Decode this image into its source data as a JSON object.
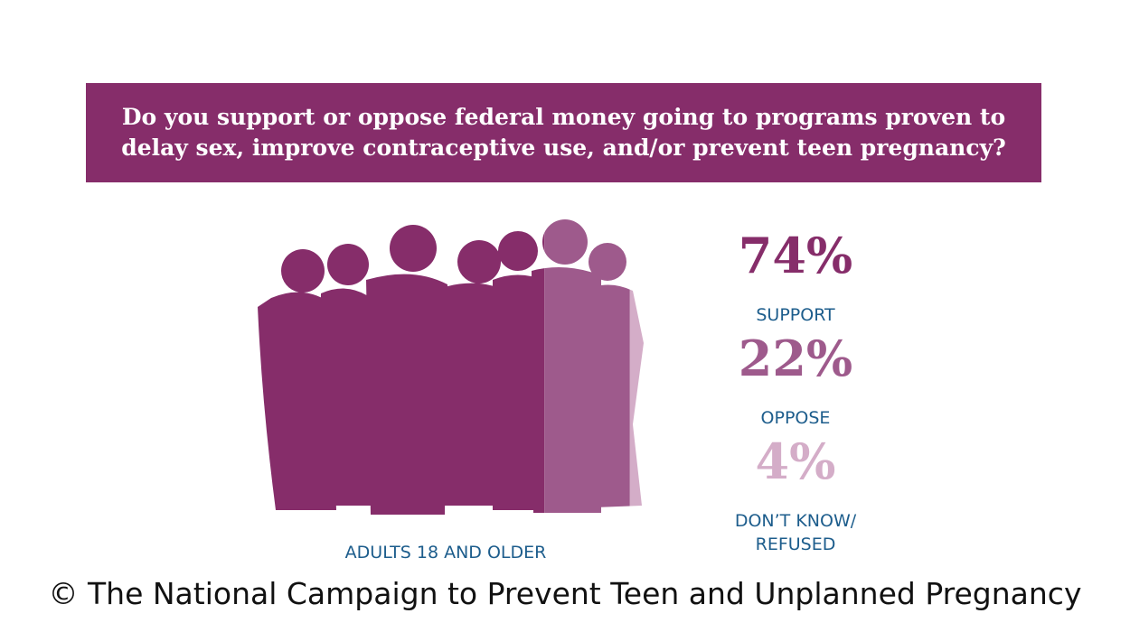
{
  "chart_data": {
    "type": "silhouette-share",
    "title": "Do you support or oppose federal money going to programs proven to delay sex, improve contraceptive use, and/or prevent teen pregnancy?",
    "categories": [
      "SUPPORT",
      "OPPOSE",
      "DON’T KNOW/ REFUSED"
    ],
    "values": [
      74,
      22,
      4
    ],
    "value_labels": [
      "74%",
      "22%",
      "4%"
    ],
    "colors": [
      "#862d6a",
      "#9e5a8c",
      "#d4adc8"
    ],
    "caption": "ADULTS 18 AND OLDER",
    "footer": "© The National Campaign to Prevent Teen and Unplanned Pregnancy"
  }
}
